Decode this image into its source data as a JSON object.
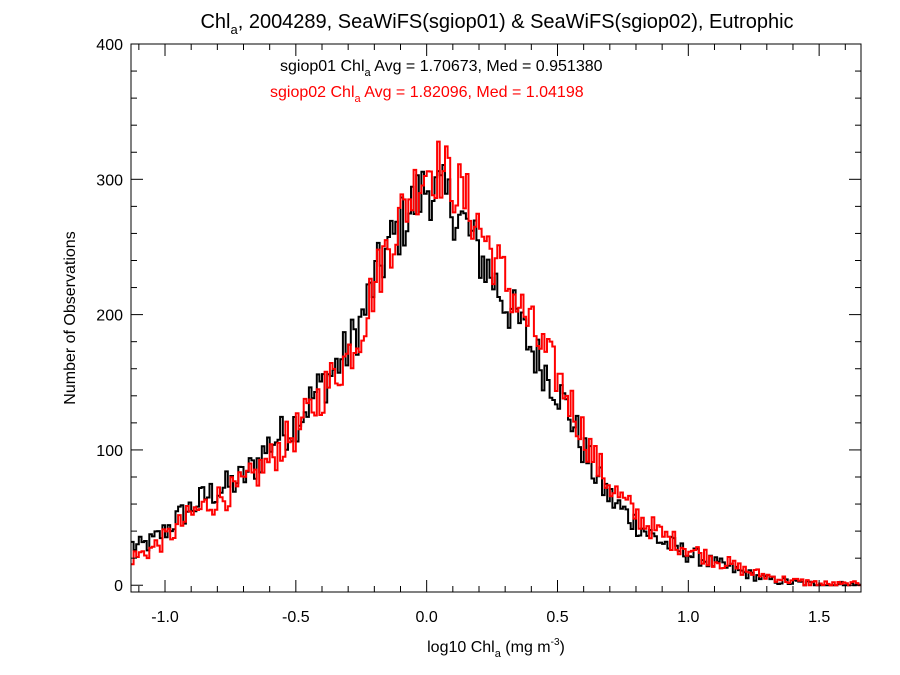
{
  "chart_data": {
    "type": "line",
    "title": {
      "prefix": "Chl",
      "sub": "a",
      "suffix": ", 2004289, SeaWiFS(sgiop01) & SeaWiFS(sgiop02), Eutrophic"
    },
    "xlabel": {
      "prefix": "log10 Chl",
      "sub": "a",
      "mid": " (mg m",
      "sup": "-3",
      "end": ")"
    },
    "ylabel": "Number of Observations",
    "xlim": [
      -1.13,
      1.66
    ],
    "ylim": [
      -5,
      400
    ],
    "x_ticks": [
      -1.0,
      -0.5,
      0.0,
      0.5,
      1.0,
      1.5
    ],
    "x_tick_labels": [
      "-1.0",
      "-0.5",
      "0.0",
      "0.5",
      "1.0",
      "1.5"
    ],
    "y_ticks": [
      0,
      100,
      200,
      300,
      400
    ],
    "y_tick_labels": [
      "0",
      "100",
      "200",
      "300",
      "400"
    ],
    "grid": false,
    "bin_width": 0.01,
    "annotations": [
      {
        "color": "#000000",
        "prefix": "sgiop01 Chl",
        "sub": "a",
        "suffix": " Avg = 1.70673, Med = 0.951380"
      },
      {
        "color": "#ff0000",
        "prefix": "sgiop02 Chl",
        "sub": "a",
        "suffix": " Avg = 1.82096, Med = 1.04198"
      }
    ],
    "series": [
      {
        "color": "#000000",
        "points": [
          [
            -1.13,
            30
          ],
          [
            -1.1,
            28
          ],
          [
            -1.05,
            32
          ],
          [
            -1.0,
            40
          ],
          [
            -0.95,
            50
          ],
          [
            -0.9,
            57
          ],
          [
            -0.85,
            65
          ],
          [
            -0.8,
            70
          ],
          [
            -0.75,
            74
          ],
          [
            -0.7,
            80
          ],
          [
            -0.65,
            90
          ],
          [
            -0.6,
            105
          ],
          [
            -0.55,
            112
          ],
          [
            -0.5,
            120
          ],
          [
            -0.45,
            135
          ],
          [
            -0.4,
            148
          ],
          [
            -0.35,
            160
          ],
          [
            -0.3,
            175
          ],
          [
            -0.25,
            195
          ],
          [
            -0.2,
            225
          ],
          [
            -0.15,
            248
          ],
          [
            -0.1,
            265
          ],
          [
            -0.05,
            282
          ],
          [
            0.0,
            295
          ],
          [
            0.05,
            290
          ],
          [
            0.1,
            280
          ],
          [
            0.15,
            265
          ],
          [
            0.2,
            245
          ],
          [
            0.25,
            228
          ],
          [
            0.3,
            210
          ],
          [
            0.35,
            195
          ],
          [
            0.4,
            175
          ],
          [
            0.45,
            160
          ],
          [
            0.5,
            145
          ],
          [
            0.55,
            125
          ],
          [
            0.6,
            100
          ],
          [
            0.65,
            80
          ],
          [
            0.7,
            65
          ],
          [
            0.75,
            55
          ],
          [
            0.8,
            46
          ],
          [
            0.85,
            38
          ],
          [
            0.9,
            32
          ],
          [
            0.95,
            28
          ],
          [
            1.0,
            23
          ],
          [
            1.05,
            20
          ],
          [
            1.1,
            16
          ],
          [
            1.15,
            13
          ],
          [
            1.2,
            10
          ],
          [
            1.25,
            7
          ],
          [
            1.3,
            5
          ],
          [
            1.35,
            3
          ],
          [
            1.4,
            2
          ],
          [
            1.45,
            1
          ],
          [
            1.5,
            0
          ],
          [
            1.55,
            0
          ],
          [
            1.6,
            0
          ]
        ]
      },
      {
        "color": "#ff0000",
        "points": [
          [
            -1.13,
            20
          ],
          [
            -1.1,
            22
          ],
          [
            -1.05,
            27
          ],
          [
            -1.0,
            34
          ],
          [
            -0.95,
            43
          ],
          [
            -0.9,
            52
          ],
          [
            -0.85,
            58
          ],
          [
            -0.8,
            64
          ],
          [
            -0.75,
            68
          ],
          [
            -0.7,
            74
          ],
          [
            -0.65,
            82
          ],
          [
            -0.6,
            92
          ],
          [
            -0.55,
            104
          ],
          [
            -0.5,
            113
          ],
          [
            -0.45,
            127
          ],
          [
            -0.4,
            142
          ],
          [
            -0.35,
            156
          ],
          [
            -0.3,
            170
          ],
          [
            -0.25,
            190
          ],
          [
            -0.2,
            222
          ],
          [
            -0.15,
            250
          ],
          [
            -0.1,
            272
          ],
          [
            -0.05,
            292
          ],
          [
            0.0,
            310
          ],
          [
            0.05,
            308
          ],
          [
            0.1,
            298
          ],
          [
            0.15,
            284
          ],
          [
            0.2,
            266
          ],
          [
            0.25,
            245
          ],
          [
            0.3,
            225
          ],
          [
            0.35,
            208
          ],
          [
            0.4,
            190
          ],
          [
            0.45,
            172
          ],
          [
            0.5,
            155
          ],
          [
            0.55,
            135
          ],
          [
            0.6,
            112
          ],
          [
            0.65,
            90
          ],
          [
            0.7,
            74
          ],
          [
            0.75,
            62
          ],
          [
            0.8,
            52
          ],
          [
            0.85,
            44
          ],
          [
            0.9,
            37
          ],
          [
            0.95,
            32
          ],
          [
            1.0,
            27
          ],
          [
            1.05,
            23
          ],
          [
            1.1,
            19
          ],
          [
            1.15,
            16
          ],
          [
            1.2,
            12
          ],
          [
            1.25,
            9
          ],
          [
            1.3,
            7
          ],
          [
            1.35,
            5
          ],
          [
            1.4,
            3
          ],
          [
            1.45,
            2
          ],
          [
            1.5,
            1
          ],
          [
            1.55,
            0
          ],
          [
            1.6,
            0
          ]
        ]
      }
    ]
  }
}
